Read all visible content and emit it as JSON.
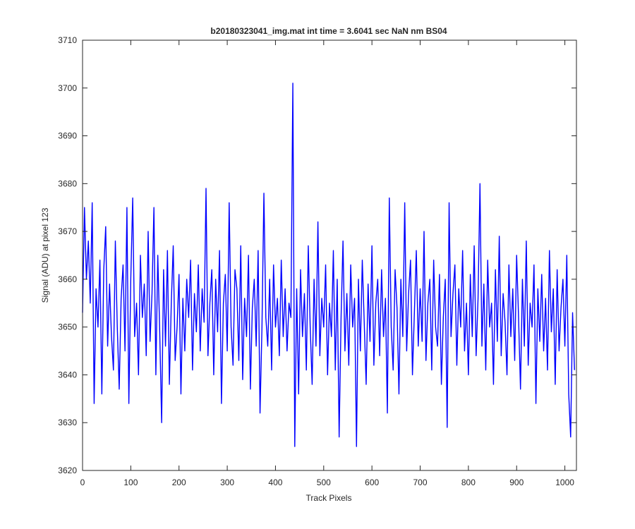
{
  "chart_data": {
    "type": "line",
    "title": "b20180323041_img.mat int time = 3.6041 sec  NaN nm BS04",
    "xlabel": "Track Pixels",
    "ylabel": "Signal (ADU) at pixel 123",
    "xlim": [
      0,
      1024
    ],
    "ylim": [
      3620,
      3710
    ],
    "xticks": [
      0,
      100,
      200,
      300,
      400,
      500,
      600,
      700,
      800,
      900,
      1000
    ],
    "yticks": [
      3620,
      3630,
      3640,
      3650,
      3660,
      3670,
      3680,
      3690,
      3700,
      3710
    ],
    "grid": false,
    "x": [
      0,
      4,
      8,
      12,
      16,
      20,
      24,
      28,
      32,
      36,
      40,
      44,
      48,
      52,
      56,
      60,
      64,
      68,
      72,
      76,
      80,
      84,
      88,
      92,
      96,
      100,
      104,
      108,
      112,
      116,
      120,
      124,
      128,
      132,
      136,
      140,
      144,
      148,
      152,
      156,
      160,
      164,
      168,
      172,
      176,
      180,
      184,
      188,
      192,
      196,
      200,
      204,
      208,
      212,
      216,
      220,
      224,
      228,
      232,
      236,
      240,
      244,
      248,
      252,
      256,
      260,
      264,
      268,
      272,
      276,
      280,
      284,
      288,
      292,
      296,
      300,
      304,
      308,
      312,
      316,
      320,
      324,
      328,
      332,
      336,
      340,
      344,
      348,
      352,
      356,
      360,
      364,
      368,
      372,
      376,
      380,
      384,
      388,
      392,
      396,
      400,
      404,
      408,
      412,
      416,
      420,
      424,
      428,
      432,
      436,
      440,
      444,
      448,
      452,
      456,
      460,
      464,
      468,
      472,
      476,
      480,
      484,
      488,
      492,
      496,
      500,
      504,
      508,
      512,
      516,
      520,
      524,
      528,
      532,
      536,
      540,
      544,
      548,
      552,
      556,
      560,
      564,
      568,
      572,
      576,
      580,
      584,
      588,
      592,
      596,
      600,
      604,
      608,
      612,
      616,
      620,
      624,
      628,
      632,
      636,
      640,
      644,
      648,
      652,
      656,
      660,
      664,
      668,
      672,
      676,
      680,
      684,
      688,
      692,
      696,
      700,
      704,
      708,
      712,
      716,
      720,
      724,
      728,
      732,
      736,
      740,
      744,
      748,
      752,
      756,
      760,
      764,
      768,
      772,
      776,
      780,
      784,
      788,
      792,
      796,
      800,
      804,
      808,
      812,
      816,
      820,
      824,
      828,
      832,
      836,
      840,
      844,
      848,
      852,
      856,
      860,
      864,
      868,
      872,
      876,
      880,
      884,
      888,
      892,
      896,
      900,
      904,
      908,
      912,
      916,
      920,
      924,
      928,
      932,
      936,
      940,
      944,
      948,
      952,
      956,
      960,
      964,
      968,
      972,
      976,
      980,
      984,
      988,
      992,
      996,
      1000,
      1004,
      1008,
      1012,
      1016,
      1020
    ],
    "series": [
      {
        "color": "#0000ff",
        "values": [
          3653,
          3675,
          3660,
          3668,
          3655,
          3676,
          3634,
          3658,
          3650,
          3664,
          3636,
          3662,
          3671,
          3646,
          3659,
          3648,
          3641,
          3668,
          3650,
          3637,
          3656,
          3663,
          3645,
          3675,
          3634,
          3660,
          3677,
          3648,
          3655,
          3640,
          3665,
          3652,
          3659,
          3644,
          3670,
          3647,
          3657,
          3675,
          3640,
          3665,
          3649,
          3630,
          3662,
          3646,
          3666,
          3638,
          3655,
          3667,
          3643,
          3650,
          3661,
          3636,
          3656,
          3645,
          3660,
          3652,
          3664,
          3641,
          3657,
          3649,
          3663,
          3645,
          3658,
          3651,
          3679,
          3644,
          3655,
          3662,
          3640,
          3660,
          3649,
          3666,
          3634,
          3655,
          3661,
          3645,
          3676,
          3650,
          3642,
          3662,
          3658,
          3643,
          3667,
          3639,
          3656,
          3648,
          3665,
          3637,
          3654,
          3660,
          3646,
          3666,
          3632,
          3650,
          3678,
          3652,
          3646,
          3660,
          3641,
          3663,
          3650,
          3656,
          3644,
          3664,
          3648,
          3658,
          3645,
          3655,
          3652,
          3701,
          3625,
          3658,
          3636,
          3662,
          3648,
          3657,
          3641,
          3667,
          3650,
          3638,
          3660,
          3646,
          3672,
          3644,
          3656,
          3650,
          3663,
          3640,
          3655,
          3648,
          3666,
          3641,
          3660,
          3627,
          3652,
          3668,
          3645,
          3657,
          3642,
          3663,
          3650,
          3656,
          3625,
          3660,
          3645,
          3664,
          3651,
          3638,
          3659,
          3647,
          3667,
          3642,
          3655,
          3660,
          3644,
          3662,
          3648,
          3656,
          3632,
          3677,
          3650,
          3641,
          3662,
          3654,
          3636,
          3660,
          3648,
          3676,
          3645,
          3657,
          3664,
          3640,
          3653,
          3666,
          3646,
          3658,
          3647,
          3670,
          3643,
          3655,
          3660,
          3641,
          3664,
          3650,
          3646,
          3661,
          3638,
          3652,
          3660,
          3629,
          3676,
          3648,
          3657,
          3663,
          3642,
          3658,
          3650,
          3666,
          3645,
          3655,
          3640,
          3661,
          3648,
          3667,
          3644,
          3656,
          3680,
          3646,
          3659,
          3641,
          3664,
          3650,
          3655,
          3638,
          3662,
          3647,
          3669,
          3644,
          3657,
          3651,
          3640,
          3663,
          3648,
          3658,
          3643,
          3665,
          3652,
          3637,
          3660,
          3646,
          3668,
          3642,
          3655,
          3650,
          3663,
          3634,
          3658,
          3647,
          3661,
          3645,
          3656,
          3641,
          3666,
          3649,
          3658,
          3638,
          3662,
          3645,
          3654,
          3660,
          3646,
          3665,
          3636,
          3627,
          3653,
          3641
        ]
      }
    ]
  }
}
